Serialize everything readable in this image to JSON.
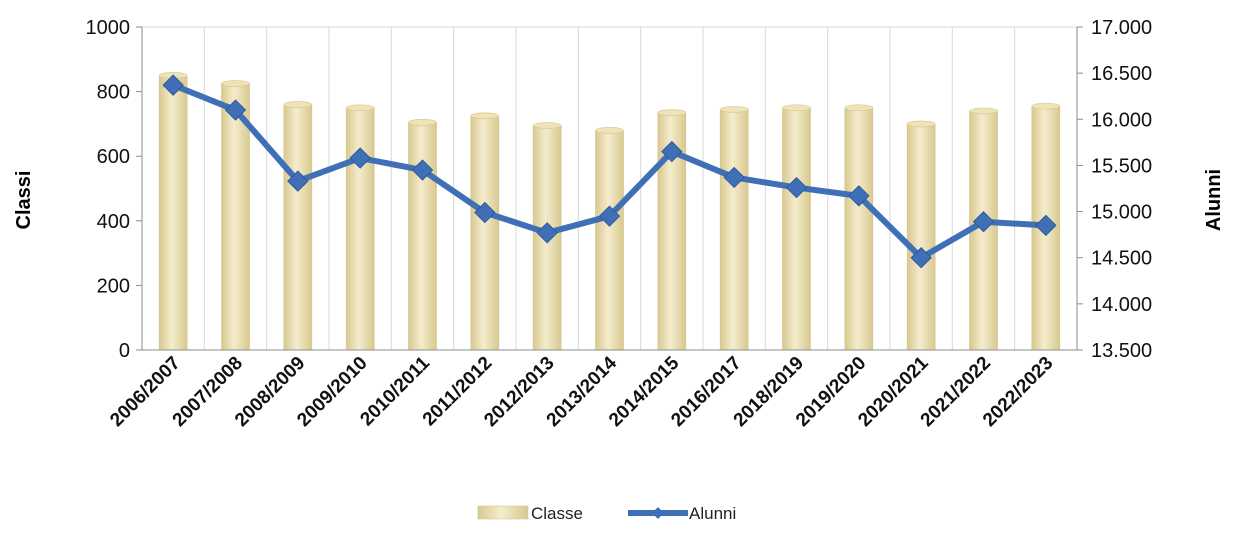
{
  "colors": {
    "bar_fill_light": "#f4eccd",
    "bar_fill_dark": "#d8c98f",
    "line": "#3f6fb6",
    "grid": "#d9d9d9"
  },
  "chart_data": {
    "type": "bar",
    "categories": [
      "2006/2007",
      "2007/2008",
      "2008/2009",
      "2009/2010",
      "2010/2011",
      "2011/2012",
      "2012/2013",
      "2013/2014",
      "2014/2015",
      "2016/2017",
      "2018/2019",
      "2019/2020",
      "2020/2021",
      "2021/2022",
      "2022/2023"
    ],
    "series": [
      {
        "name": "Classe",
        "type": "bar",
        "axis": "left",
        "values": [
          850,
          825,
          760,
          750,
          705,
          725,
          695,
          680,
          735,
          745,
          750,
          750,
          700,
          740,
          755
        ]
      },
      {
        "name": "Alunni",
        "type": "line",
        "axis": "right",
        "values": [
          16370,
          16100,
          15330,
          15580,
          15450,
          14990,
          14770,
          14950,
          15650,
          15370,
          15260,
          15170,
          14500,
          14890,
          14850
        ]
      }
    ],
    "ylabel": "Classi",
    "y2label": "Alunni",
    "ylim": [
      0,
      1000
    ],
    "yticks": [
      "0",
      "200",
      "400",
      "600",
      "800",
      "1000"
    ],
    "y2lim": [
      13500,
      17000
    ],
    "y2ticks": [
      "13.500",
      "14.000",
      "14.500",
      "15.000",
      "15.500",
      "16.000",
      "16.500",
      "17.000"
    ],
    "grid": "vertical",
    "legend": "bottom"
  }
}
